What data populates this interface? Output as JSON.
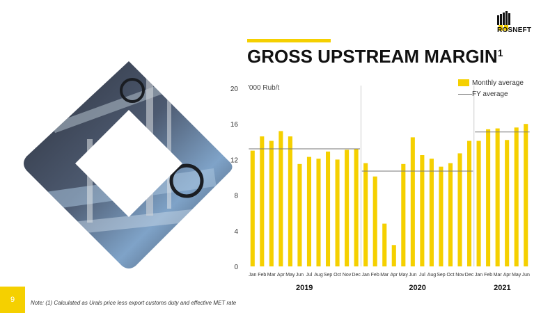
{
  "title": {
    "text": "GROSS UPSTREAM MARGIN",
    "superscript": "1"
  },
  "logo": {
    "text": "ROSNEFT"
  },
  "footer": {
    "page_number": "9",
    "note": "Note: (1) Calculated as Urals price less export customs duty and effective MET rate"
  },
  "colors": {
    "accent": "#f5d000",
    "fy_line": "#777777"
  },
  "chart_data": {
    "type": "bar",
    "unit_label": "'000 Rub/t",
    "ylim": [
      0,
      20
    ],
    "yticks": [
      0,
      4,
      8,
      12,
      16,
      20
    ],
    "grid": false,
    "legend": {
      "placement": "top-right",
      "entries": [
        {
          "label": "Monthly average",
          "kind": "bar"
        },
        {
          "label": "FY average",
          "kind": "line"
        }
      ]
    },
    "years": [
      {
        "label": "2019",
        "months": 12
      },
      {
        "label": "2020",
        "months": 12
      },
      {
        "label": "2021",
        "months": 6
      }
    ],
    "categories": [
      "Jan",
      "Feb",
      "Mar",
      "Apr",
      "May",
      "Jun",
      "Jul",
      "Aug",
      "Sep",
      "Oct",
      "Nov",
      "Dec",
      "Jan",
      "Feb",
      "Mar",
      "Apr",
      "May",
      "Jun",
      "Jul",
      "Aug",
      "Sep",
      "Oct",
      "Nov",
      "Dec",
      "Jan",
      "Feb",
      "Mar",
      "Apr",
      "May",
      "Jun"
    ],
    "series": [
      {
        "name": "Monthly average",
        "values": [
          13.0,
          14.6,
          14.1,
          15.2,
          14.6,
          11.5,
          12.3,
          12.1,
          12.9,
          12.0,
          13.1,
          13.2,
          11.6,
          10.1,
          4.8,
          2.4,
          11.5,
          14.5,
          12.5,
          12.1,
          11.2,
          11.6,
          12.7,
          14.1,
          14.1,
          15.4,
          15.5,
          14.2,
          15.6,
          16.0
        ]
      }
    ],
    "fy_average": [
      {
        "year": "2019",
        "value": 13.2
      },
      {
        "year": "2020",
        "value": 10.7
      },
      {
        "year": "2021",
        "value": 15.1
      }
    ]
  }
}
